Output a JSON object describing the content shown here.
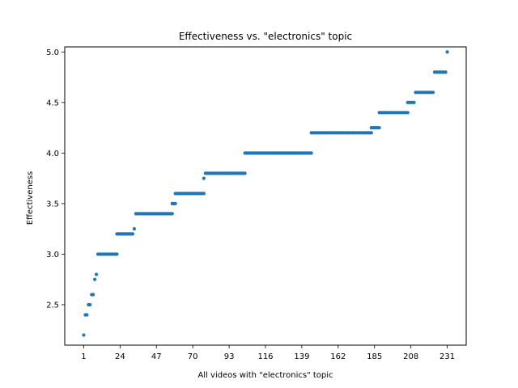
{
  "chart_data": {
    "type": "scatter",
    "title": "Effectiveness vs. \"electronics\" topic",
    "xlabel": "All videos with \"electronics\" topic",
    "ylabel": "Effectiveness",
    "xlim": [
      -11,
      243
    ],
    "ylim": [
      2.1,
      5.05
    ],
    "xticks": [
      1,
      24,
      47,
      70,
      93,
      116,
      139,
      162,
      185,
      208,
      231
    ],
    "yticks": [
      2.5,
      3.0,
      3.5,
      4.0,
      4.5,
      5.0
    ],
    "ytick_labels": [
      "2.5",
      "3.0",
      "3.5",
      "4.0",
      "4.5",
      "5.0"
    ],
    "grid": false,
    "marker_color": "#1f77b4",
    "runs": [
      {
        "x_start": 1,
        "x_end": 1,
        "y": 2.2
      },
      {
        "x_start": 2,
        "x_end": 3,
        "y": 2.4
      },
      {
        "x_start": 4,
        "x_end": 5,
        "y": 2.5
      },
      {
        "x_start": 6,
        "x_end": 7,
        "y": 2.6
      },
      {
        "x_start": 8,
        "x_end": 8,
        "y": 2.75
      },
      {
        "x_start": 9,
        "x_end": 9,
        "y": 2.8
      },
      {
        "x_start": 10,
        "x_end": 22,
        "y": 3.0
      },
      {
        "x_start": 22,
        "x_end": 32,
        "y": 3.2
      },
      {
        "x_start": 33,
        "x_end": 33,
        "y": 3.25
      },
      {
        "x_start": 34,
        "x_end": 57,
        "y": 3.4
      },
      {
        "x_start": 57,
        "x_end": 59,
        "y": 3.5
      },
      {
        "x_start": 59,
        "x_end": 77,
        "y": 3.6
      },
      {
        "x_start": 77,
        "x_end": 77,
        "y": 3.75
      },
      {
        "x_start": 78,
        "x_end": 103,
        "y": 3.8
      },
      {
        "x_start": 103,
        "x_end": 145,
        "y": 4.0
      },
      {
        "x_start": 145,
        "x_end": 183,
        "y": 4.2
      },
      {
        "x_start": 183,
        "x_end": 188,
        "y": 4.25
      },
      {
        "x_start": 188,
        "x_end": 206,
        "y": 4.4
      },
      {
        "x_start": 206,
        "x_end": 210,
        "y": 4.5
      },
      {
        "x_start": 211,
        "x_end": 222,
        "y": 4.6
      },
      {
        "x_start": 223,
        "x_end": 230,
        "y": 4.8
      },
      {
        "x_start": 231,
        "x_end": 231,
        "y": 5.0
      }
    ]
  }
}
